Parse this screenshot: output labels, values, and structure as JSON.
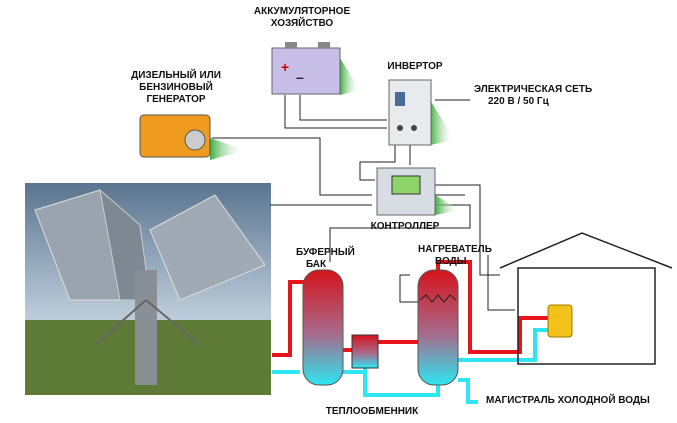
{
  "nodes": [
    {
      "label": [
        "АККУМУЛЯТОРНОЕ",
        "ХОЗЯЙСТВО"
      ]
    },
    {
      "label": [
        "ИНВЕРТОР"
      ]
    },
    {
      "label": [
        "ДИЗЕЛЬНЫЙ ИЛИ",
        "БЕНЗИНОВЫЙ",
        "ГЕНЕРАТОР"
      ]
    },
    {
      "label": [
        "ЭЛЕКТРИЧЕСКАЯ СЕТЬ",
        "220 В / 50 Гц"
      ]
    },
    {
      "label": [
        "КОНТРОЛЛЕР"
      ]
    },
    {
      "label": [
        "БУФЕРНЫЙ",
        "БАК"
      ]
    },
    {
      "label": [
        "НАГРЕВАТЕЛЬ",
        "ВОДЫ"
      ]
    },
    {
      "label": [
        "ТЕПЛООБМЕННИК"
      ]
    },
    {
      "label": [
        "МАГИСТРАЛЬ ХОЛОДНОЙ ВОДЫ"
      ]
    }
  ]
}
